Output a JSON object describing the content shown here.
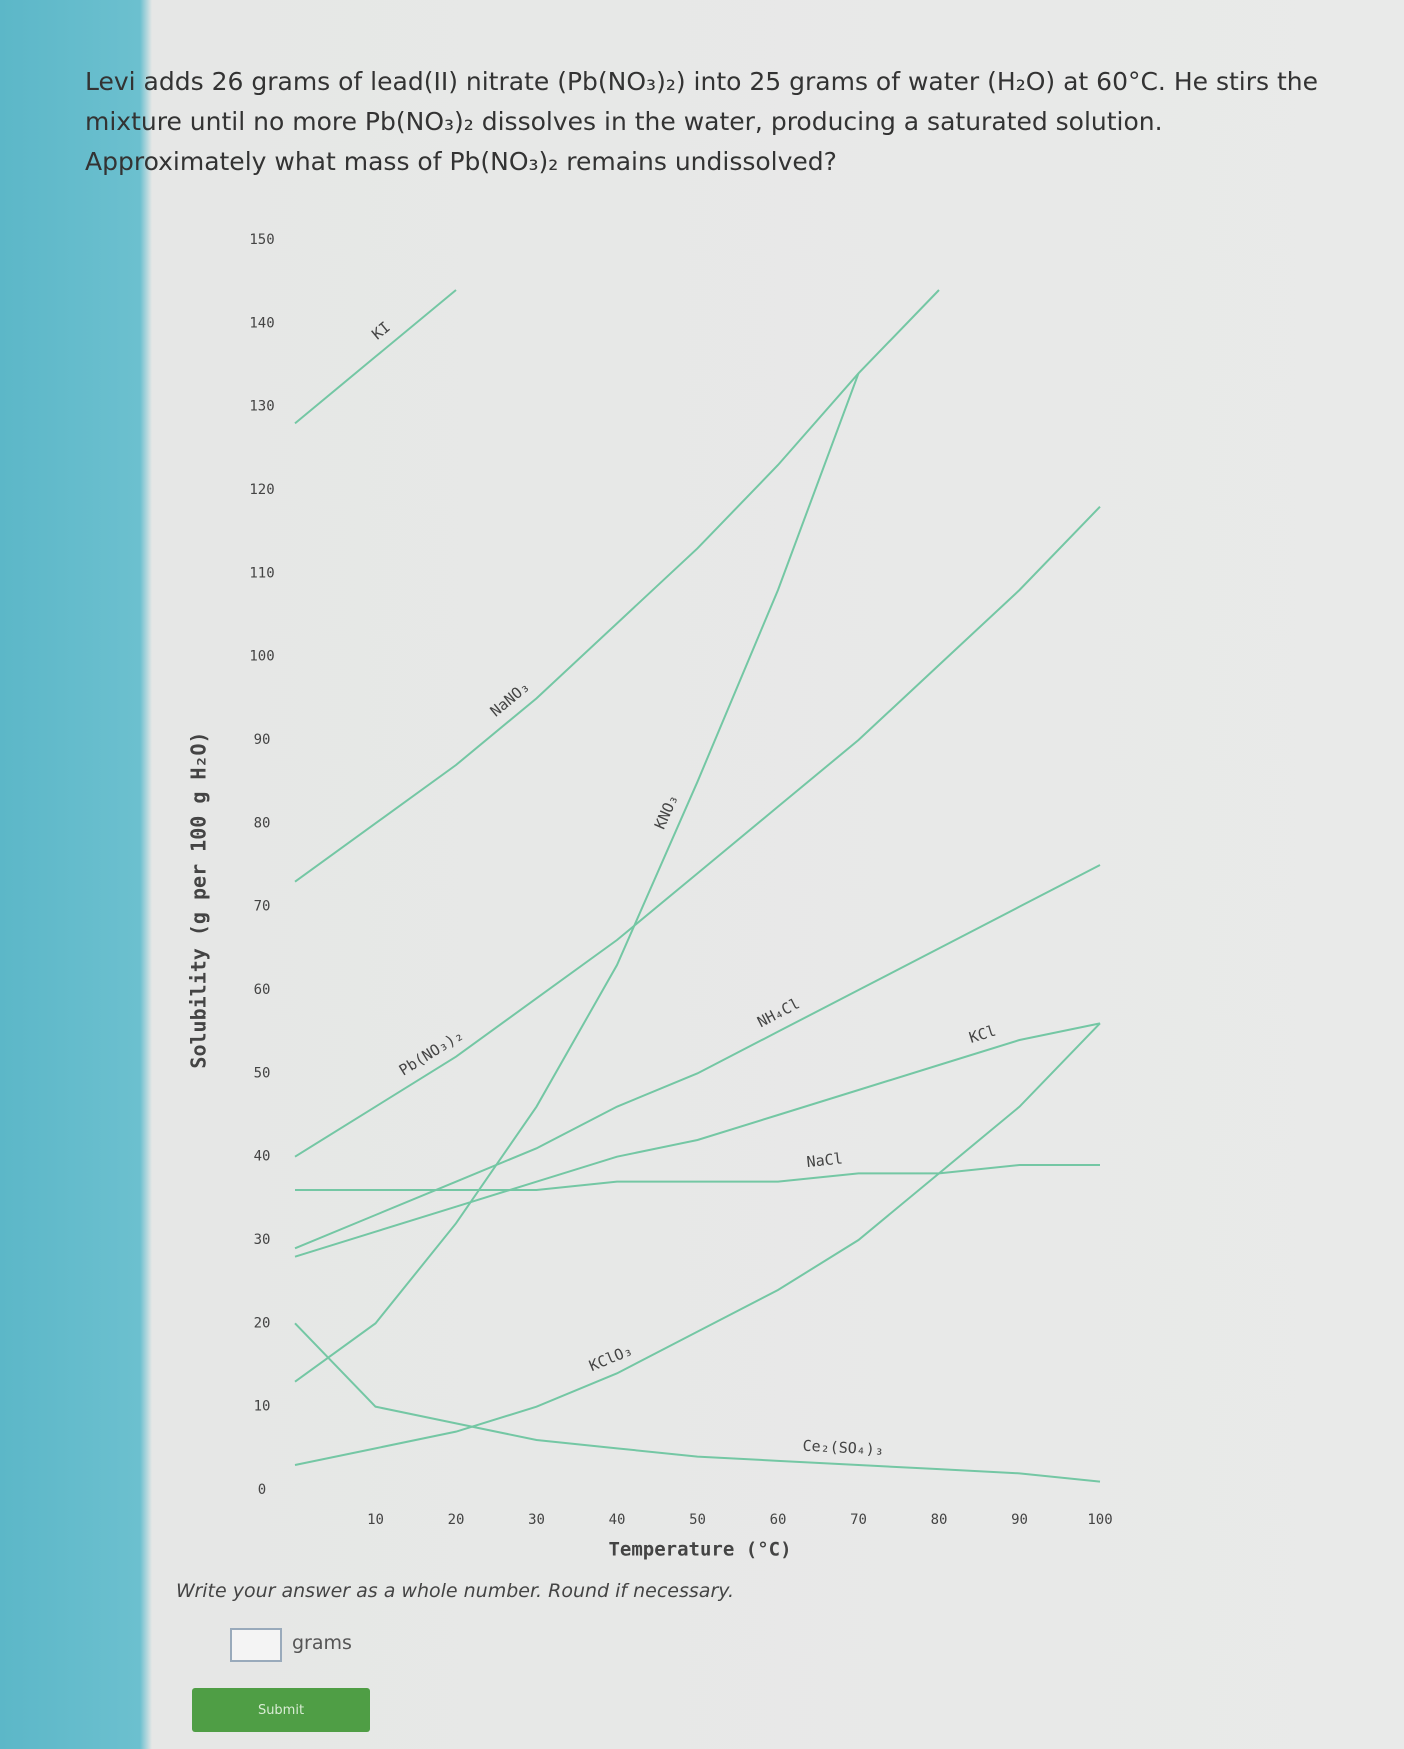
{
  "question": "Levi adds 26 grams of lead(II) nitrate (Pb(NO₃)₂) into 25 grams of water (H₂O) at 60°C. He stirs the mixture until no more Pb(NO₃)₂ dissolves in the water, producing a saturated solution. Approximately what mass of Pb(NO₃)₂ remains undissolved?",
  "chart_data": {
    "type": "line",
    "x_label": "Temperature (°C)",
    "y_label": "Solubility (g per 100 g H₂O)",
    "x": [
      0,
      10,
      20,
      30,
      40,
      50,
      60,
      70,
      80,
      90,
      100
    ],
    "xlim": [
      0,
      100
    ],
    "xticks": [
      10,
      20,
      30,
      40,
      50,
      60,
      70,
      80,
      90,
      100
    ],
    "ylim": [
      0,
      150
    ],
    "yticks": [
      0,
      10,
      20,
      30,
      40,
      50,
      60,
      70,
      80,
      90,
      100,
      110,
      120,
      130,
      140,
      150
    ],
    "grid": false,
    "series": [
      {
        "name": "KI",
        "color": "#74c7a4",
        "values": [
          128,
          136,
          144,
          null,
          null,
          null,
          null,
          null,
          null,
          null,
          null
        ]
      },
      {
        "name": "NaNO₃",
        "color": "#74c7a4",
        "values": [
          73,
          80,
          87,
          95,
          104,
          113,
          123,
          134,
          144,
          null,
          null
        ]
      },
      {
        "name": "KNO₃",
        "color": "#74c7a4",
        "values": [
          13,
          20,
          32,
          46,
          63,
          85,
          108,
          134,
          null,
          null,
          null
        ]
      },
      {
        "name": "Pb(NO₃)₂",
        "color": "#74c7a4",
        "values": [
          40,
          46,
          52,
          59,
          66,
          74,
          82,
          90,
          99,
          108,
          118
        ]
      },
      {
        "name": "NH₄Cl",
        "color": "#74c7a4",
        "values": [
          29,
          33,
          37,
          41,
          46,
          50,
          55,
          60,
          65,
          70,
          75
        ]
      },
      {
        "name": "KCl",
        "color": "#74c7a4",
        "values": [
          28,
          31,
          34,
          37,
          40,
          42,
          45,
          48,
          51,
          54,
          56
        ]
      },
      {
        "name": "NaCl",
        "color": "#74c7a4",
        "values": [
          36,
          36,
          36,
          36,
          37,
          37,
          37,
          38,
          38,
          39,
          39
        ]
      },
      {
        "name": "KClO₃",
        "color": "#74c7a4",
        "values": [
          3,
          5,
          7,
          10,
          14,
          19,
          24,
          30,
          38,
          46,
          56
        ]
      },
      {
        "name": "Ce₂(SO₄)₃",
        "color": "#74c7a4",
        "values": [
          20,
          10,
          8,
          6,
          5,
          4,
          3.5,
          3,
          2.5,
          2,
          1
        ]
      }
    ]
  },
  "instruction": "Write your answer as a whole number. Round if necessary.",
  "answer_unit": "grams",
  "submit_label": "Submit"
}
